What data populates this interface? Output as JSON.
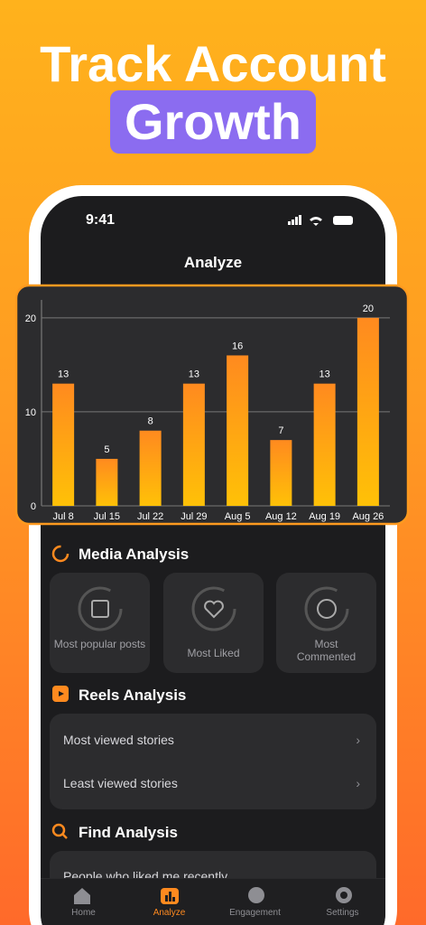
{
  "headline": {
    "line1": "Track Account",
    "line2": "Growth"
  },
  "status_bar": {
    "time": "9:41"
  },
  "nav": {
    "title": "Analyze"
  },
  "chart_data": {
    "type": "bar",
    "categories": [
      "Jul 8",
      "Jul 15",
      "Jul 22",
      "Jul 29",
      "Aug 5",
      "Aug 12",
      "Aug 19",
      "Aug 26"
    ],
    "values": [
      13,
      5,
      8,
      13,
      16,
      7,
      13,
      20
    ],
    "ylim": [
      0,
      22
    ],
    "yticks": [
      0,
      10,
      20
    ],
    "grid": true,
    "color_top": "#ff8a1f",
    "color_bottom": "#ffc107"
  },
  "media_analysis": {
    "title": "Media Analysis",
    "cards": [
      "Most popular posts",
      "Most Liked",
      "Most Commented"
    ]
  },
  "reels_analysis": {
    "title": "Reels Analysis",
    "items": [
      "Most viewed stories",
      "Least viewed stories"
    ]
  },
  "find_analysis": {
    "title": "Find Analysis",
    "items": [
      "People who liked me recently"
    ]
  },
  "tab_bar": {
    "tabs": [
      "Home",
      "Analyze",
      "Engagement",
      "Settings"
    ]
  }
}
